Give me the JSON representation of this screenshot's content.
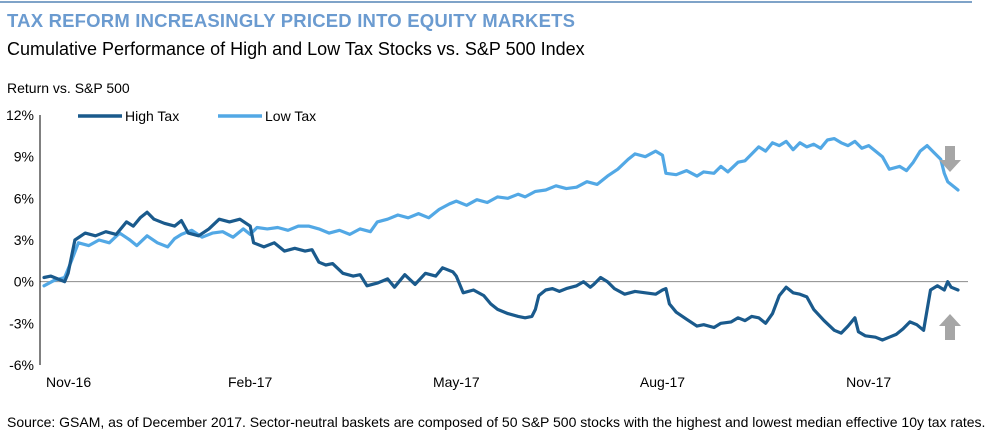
{
  "header": {
    "title": "TAX REFORM INCREASINGLY PRICED INTO EQUITY MARKETS",
    "subtitle": "Cumulative Performance of High and Low Tax Stocks vs. S&P 500 Index",
    "y_axis_caption": "Return vs. S&P 500"
  },
  "footer": {
    "source": "Source: GSAM, as of December 2017. Sector-neutral baskets are composed of 50 S&P 500 stocks with the highest and lowest median effective 10y tax rates."
  },
  "colors": {
    "high_tax": "#1a5a8c",
    "low_tax": "#52a8e5",
    "zero_line": "#8c8c8c",
    "arrow": "#a6a6a6",
    "title": "#6b9bd0"
  },
  "chart_data": {
    "type": "line",
    "title": "Cumulative Performance of High and Low Tax Stocks vs. S&P 500 Index",
    "ylabel": "Return vs. S&P 500",
    "xlabel": "",
    "ylim": [
      -6,
      12
    ],
    "xlim": [
      0,
      13.3
    ],
    "yticks": [
      -6,
      -3,
      0,
      3,
      6,
      9,
      12
    ],
    "ytick_labels": [
      "-6%",
      "-3%",
      "0%",
      "3%",
      "6%",
      "9%",
      "12%"
    ],
    "xticks": [
      0,
      3,
      6,
      9,
      12
    ],
    "xtick_labels": [
      "Nov-16",
      "Feb-17",
      "May-17",
      "Aug-17",
      "Nov-17"
    ],
    "x_unit": "months since Nov-16",
    "grid": false,
    "legend": [
      "High Tax",
      "Low Tax"
    ],
    "legend_position": "top-left",
    "annotations": [
      "down-arrow next to Low Tax end",
      "up-arrow next to High Tax end"
    ],
    "series": [
      {
        "name": "High Tax",
        "points": [
          [
            0,
            0.3
          ],
          [
            0.1,
            0.4
          ],
          [
            0.2,
            0.2
          ],
          [
            0.3,
            0.0
          ],
          [
            0.35,
            0.6
          ],
          [
            0.45,
            3.0
          ],
          [
            0.6,
            3.5
          ],
          [
            0.75,
            3.3
          ],
          [
            0.9,
            3.6
          ],
          [
            1.05,
            3.4
          ],
          [
            1.2,
            4.3
          ],
          [
            1.3,
            4.0
          ],
          [
            1.4,
            4.6
          ],
          [
            1.5,
            5.0
          ],
          [
            1.6,
            4.5
          ],
          [
            1.75,
            4.2
          ],
          [
            1.9,
            4.0
          ],
          [
            2.0,
            4.4
          ],
          [
            2.1,
            3.5
          ],
          [
            2.25,
            3.3
          ],
          [
            2.4,
            3.8
          ],
          [
            2.55,
            4.5
          ],
          [
            2.7,
            4.3
          ],
          [
            2.85,
            4.5
          ],
          [
            3.0,
            4.0
          ],
          [
            3.05,
            2.8
          ],
          [
            3.2,
            2.5
          ],
          [
            3.35,
            2.8
          ],
          [
            3.5,
            2.2
          ],
          [
            3.65,
            2.4
          ],
          [
            3.8,
            2.2
          ],
          [
            3.9,
            2.3
          ],
          [
            4.0,
            1.4
          ],
          [
            4.1,
            1.2
          ],
          [
            4.2,
            1.3
          ],
          [
            4.35,
            0.6
          ],
          [
            4.5,
            0.4
          ],
          [
            4.6,
            0.5
          ],
          [
            4.7,
            -0.3
          ],
          [
            4.85,
            -0.1
          ],
          [
            5.0,
            0.2
          ],
          [
            5.1,
            -0.4
          ],
          [
            5.25,
            0.5
          ],
          [
            5.4,
            -0.2
          ],
          [
            5.55,
            0.6
          ],
          [
            5.7,
            0.4
          ],
          [
            5.8,
            1.0
          ],
          [
            5.95,
            0.7
          ],
          [
            6.0,
            0.4
          ],
          [
            6.1,
            -0.8
          ],
          [
            6.25,
            -0.6
          ],
          [
            6.4,
            -1.0
          ],
          [
            6.5,
            -1.6
          ],
          [
            6.6,
            -2.0
          ],
          [
            6.75,
            -2.3
          ],
          [
            6.9,
            -2.5
          ],
          [
            7.0,
            -2.6
          ],
          [
            7.1,
            -2.5
          ],
          [
            7.15,
            -2.0
          ],
          [
            7.2,
            -1.0
          ],
          [
            7.3,
            -0.6
          ],
          [
            7.4,
            -0.5
          ],
          [
            7.5,
            -0.7
          ],
          [
            7.6,
            -0.5
          ],
          [
            7.75,
            -0.3
          ],
          [
            7.85,
            0.0
          ],
          [
            7.95,
            -0.4
          ],
          [
            8.0,
            -0.2
          ],
          [
            8.1,
            0.3
          ],
          [
            8.2,
            0.0
          ],
          [
            8.3,
            -0.5
          ],
          [
            8.45,
            -0.9
          ],
          [
            8.6,
            -0.7
          ],
          [
            8.75,
            -0.8
          ],
          [
            8.9,
            -0.9
          ],
          [
            9.0,
            -0.6
          ],
          [
            9.05,
            -0.5
          ],
          [
            9.1,
            -1.6
          ],
          [
            9.2,
            -2.2
          ],
          [
            9.35,
            -2.7
          ],
          [
            9.5,
            -3.2
          ],
          [
            9.6,
            -3.1
          ],
          [
            9.75,
            -3.3
          ],
          [
            9.85,
            -3.0
          ],
          [
            10.0,
            -2.9
          ],
          [
            10.1,
            -2.6
          ],
          [
            10.2,
            -2.8
          ],
          [
            10.3,
            -2.5
          ],
          [
            10.4,
            -2.6
          ],
          [
            10.5,
            -3.0
          ],
          [
            10.6,
            -2.3
          ],
          [
            10.7,
            -1.0
          ],
          [
            10.8,
            -0.4
          ],
          [
            10.9,
            -0.8
          ],
          [
            11.0,
            -0.9
          ],
          [
            11.1,
            -1.1
          ],
          [
            11.2,
            -2.0
          ],
          [
            11.35,
            -2.8
          ],
          [
            11.5,
            -3.5
          ],
          [
            11.6,
            -3.7
          ],
          [
            11.7,
            -3.2
          ],
          [
            11.8,
            -2.6
          ],
          [
            11.85,
            -3.6
          ],
          [
            11.95,
            -3.9
          ],
          [
            12.1,
            -4.0
          ],
          [
            12.2,
            -4.2
          ],
          [
            12.3,
            -4.0
          ],
          [
            12.4,
            -3.8
          ],
          [
            12.5,
            -3.4
          ],
          [
            12.6,
            -2.9
          ],
          [
            12.7,
            -3.1
          ],
          [
            12.8,
            -3.5
          ],
          [
            12.9,
            -0.6
          ],
          [
            13.0,
            -0.3
          ],
          [
            13.1,
            -0.6
          ],
          [
            13.15,
            0.0
          ],
          [
            13.2,
            -0.4
          ],
          [
            13.3,
            -0.6
          ]
        ]
      },
      {
        "name": "Low Tax",
        "points": [
          [
            0,
            -0.3
          ],
          [
            0.15,
            0.1
          ],
          [
            0.3,
            0.3
          ],
          [
            0.4,
            1.5
          ],
          [
            0.5,
            2.8
          ],
          [
            0.65,
            2.6
          ],
          [
            0.8,
            3.0
          ],
          [
            0.95,
            2.8
          ],
          [
            1.1,
            3.5
          ],
          [
            1.25,
            3.0
          ],
          [
            1.35,
            2.6
          ],
          [
            1.5,
            3.3
          ],
          [
            1.65,
            2.8
          ],
          [
            1.8,
            2.5
          ],
          [
            1.9,
            3.1
          ],
          [
            2.0,
            3.4
          ],
          [
            2.15,
            3.7
          ],
          [
            2.3,
            3.2
          ],
          [
            2.45,
            3.5
          ],
          [
            2.6,
            3.6
          ],
          [
            2.75,
            3.2
          ],
          [
            2.9,
            3.8
          ],
          [
            3.0,
            3.4
          ],
          [
            3.1,
            3.9
          ],
          [
            3.25,
            3.8
          ],
          [
            3.4,
            3.9
          ],
          [
            3.55,
            3.7
          ],
          [
            3.7,
            4.0
          ],
          [
            3.85,
            4.0
          ],
          [
            4.0,
            3.8
          ],
          [
            4.15,
            3.5
          ],
          [
            4.3,
            3.7
          ],
          [
            4.45,
            3.4
          ],
          [
            4.6,
            3.8
          ],
          [
            4.75,
            3.6
          ],
          [
            4.85,
            4.3
          ],
          [
            5.0,
            4.5
          ],
          [
            5.15,
            4.8
          ],
          [
            5.3,
            4.6
          ],
          [
            5.45,
            4.9
          ],
          [
            5.6,
            4.6
          ],
          [
            5.75,
            5.2
          ],
          [
            5.9,
            5.6
          ],
          [
            6.0,
            5.8
          ],
          [
            6.15,
            5.5
          ],
          [
            6.3,
            5.9
          ],
          [
            6.45,
            5.7
          ],
          [
            6.6,
            6.1
          ],
          [
            6.75,
            6.0
          ],
          [
            6.9,
            6.3
          ],
          [
            7.0,
            6.1
          ],
          [
            7.15,
            6.5
          ],
          [
            7.3,
            6.6
          ],
          [
            7.45,
            6.9
          ],
          [
            7.6,
            6.7
          ],
          [
            7.75,
            6.8
          ],
          [
            7.9,
            7.2
          ],
          [
            8.05,
            7.0
          ],
          [
            8.2,
            7.6
          ],
          [
            8.35,
            8.1
          ],
          [
            8.5,
            8.8
          ],
          [
            8.6,
            9.2
          ],
          [
            8.75,
            9.0
          ],
          [
            8.9,
            9.4
          ],
          [
            9.0,
            9.1
          ],
          [
            9.05,
            7.8
          ],
          [
            9.2,
            7.7
          ],
          [
            9.35,
            8.0
          ],
          [
            9.5,
            7.6
          ],
          [
            9.6,
            7.9
          ],
          [
            9.75,
            7.8
          ],
          [
            9.85,
            8.3
          ],
          [
            9.95,
            7.9
          ],
          [
            10.1,
            8.6
          ],
          [
            10.2,
            8.7
          ],
          [
            10.3,
            9.2
          ],
          [
            10.4,
            9.7
          ],
          [
            10.5,
            9.4
          ],
          [
            10.6,
            10.0
          ],
          [
            10.7,
            9.8
          ],
          [
            10.8,
            10.1
          ],
          [
            10.9,
            9.5
          ],
          [
            11.0,
            10.0
          ],
          [
            11.1,
            9.7
          ],
          [
            11.2,
            9.9
          ],
          [
            11.3,
            9.6
          ],
          [
            11.4,
            10.2
          ],
          [
            11.5,
            10.3
          ],
          [
            11.6,
            10.0
          ],
          [
            11.7,
            9.8
          ],
          [
            11.8,
            10.1
          ],
          [
            11.9,
            9.6
          ],
          [
            12.0,
            9.8
          ],
          [
            12.1,
            9.4
          ],
          [
            12.2,
            9.0
          ],
          [
            12.3,
            8.1
          ],
          [
            12.45,
            8.3
          ],
          [
            12.55,
            8.0
          ],
          [
            12.65,
            8.6
          ],
          [
            12.75,
            9.4
          ],
          [
            12.85,
            9.8
          ],
          [
            12.95,
            9.3
          ],
          [
            13.05,
            8.8
          ],
          [
            13.1,
            7.8
          ],
          [
            13.15,
            7.2
          ],
          [
            13.25,
            6.8
          ],
          [
            13.3,
            6.6
          ]
        ]
      }
    ]
  }
}
